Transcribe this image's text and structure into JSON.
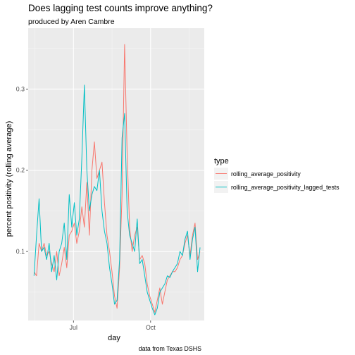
{
  "chart_data": {
    "type": "line",
    "title": "Does lagging test counts improve anything?",
    "subtitle": "produced by Aren Cambre",
    "caption": "data from Texas DSHS",
    "xlabel": "day",
    "ylabel": "percent positivity (rolling average)",
    "x_ticks": [
      "Jul",
      "Oct"
    ],
    "y_ticks": [
      "0.1",
      "0.2",
      "0.3"
    ],
    "ylim": [
      0.015,
      0.375
    ],
    "grid": true,
    "legend": {
      "title": "type",
      "position": "right"
    },
    "series": [
      {
        "name": "rolling_average_positivity",
        "color": "#F8766D",
        "x": [
          "2020-05-15",
          "2020-05-18",
          "2020-05-21",
          "2020-05-24",
          "2020-05-27",
          "2020-05-30",
          "2020-06-02",
          "2020-06-05",
          "2020-06-08",
          "2020-06-11",
          "2020-06-14",
          "2020-06-17",
          "2020-06-20",
          "2020-06-23",
          "2020-06-26",
          "2020-06-29",
          "2020-07-02",
          "2020-07-05",
          "2020-07-08",
          "2020-07-11",
          "2020-07-14",
          "2020-07-17",
          "2020-07-20",
          "2020-07-23",
          "2020-07-26",
          "2020-07-29",
          "2020-08-01",
          "2020-08-04",
          "2020-08-07",
          "2020-08-10",
          "2020-08-13",
          "2020-08-16",
          "2020-08-19",
          "2020-08-22",
          "2020-08-25",
          "2020-08-28",
          "2020-08-31",
          "2020-09-03",
          "2020-09-06",
          "2020-09-09",
          "2020-09-12",
          "2020-09-15",
          "2020-09-18",
          "2020-09-21",
          "2020-09-24",
          "2020-09-27",
          "2020-09-30",
          "2020-10-03",
          "2020-10-06",
          "2020-10-09",
          "2020-10-12",
          "2020-10-15",
          "2020-10-18",
          "2020-10-21",
          "2020-10-24",
          "2020-10-27",
          "2020-10-30",
          "2020-11-02",
          "2020-11-05",
          "2020-11-08",
          "2020-11-11",
          "2020-11-14",
          "2020-11-17",
          "2020-11-20",
          "2020-11-23",
          "2020-11-26",
          "2020-11-29"
        ],
        "values": [
          0.075,
          0.07,
          0.11,
          0.1,
          0.11,
          0.095,
          0.1,
          0.085,
          0.075,
          0.1,
          0.07,
          0.085,
          0.105,
          0.08,
          0.12,
          0.125,
          0.135,
          0.11,
          0.125,
          0.155,
          0.13,
          0.185,
          0.12,
          0.2,
          0.235,
          0.19,
          0.2,
          0.21,
          0.16,
          0.12,
          0.1,
          0.075,
          0.045,
          0.03,
          0.08,
          0.17,
          0.355,
          0.22,
          0.13,
          0.1,
          0.12,
          0.13,
          0.09,
          0.095,
          0.085,
          0.06,
          0.045,
          0.035,
          0.025,
          0.04,
          0.055,
          0.035,
          0.05,
          0.065,
          0.07,
          0.075,
          0.075,
          0.08,
          0.09,
          0.095,
          0.11,
          0.12,
          0.095,
          0.12,
          0.135,
          0.09,
          0.1
        ]
      },
      {
        "name": "rolling_average_positivity_lagged_tests",
        "color": "#00BFC4",
        "x": [
          "2020-05-15",
          "2020-05-18",
          "2020-05-21",
          "2020-05-24",
          "2020-05-27",
          "2020-05-30",
          "2020-06-02",
          "2020-06-05",
          "2020-06-08",
          "2020-06-11",
          "2020-06-14",
          "2020-06-17",
          "2020-06-20",
          "2020-06-23",
          "2020-06-26",
          "2020-06-29",
          "2020-07-02",
          "2020-07-05",
          "2020-07-08",
          "2020-07-11",
          "2020-07-14",
          "2020-07-17",
          "2020-07-20",
          "2020-07-23",
          "2020-07-26",
          "2020-07-29",
          "2020-08-01",
          "2020-08-04",
          "2020-08-07",
          "2020-08-10",
          "2020-08-13",
          "2020-08-16",
          "2020-08-19",
          "2020-08-22",
          "2020-08-25",
          "2020-08-28",
          "2020-08-31",
          "2020-09-03",
          "2020-09-06",
          "2020-09-09",
          "2020-09-12",
          "2020-09-15",
          "2020-09-18",
          "2020-09-21",
          "2020-09-24",
          "2020-09-27",
          "2020-09-30",
          "2020-10-03",
          "2020-10-06",
          "2020-10-09",
          "2020-10-12",
          "2020-10-15",
          "2020-10-18",
          "2020-10-21",
          "2020-10-24",
          "2020-10-27",
          "2020-10-30",
          "2020-11-02",
          "2020-11-05",
          "2020-11-08",
          "2020-11-11",
          "2020-11-14",
          "2020-11-17",
          "2020-11-20",
          "2020-11-23",
          "2020-11-26",
          "2020-11-29"
        ],
        "values": [
          0.07,
          0.12,
          0.165,
          0.1,
          0.105,
          0.09,
          0.11,
          0.075,
          0.095,
          0.065,
          0.1,
          0.11,
          0.135,
          0.09,
          0.17,
          0.13,
          0.16,
          0.12,
          0.14,
          0.215,
          0.305,
          0.2,
          0.15,
          0.17,
          0.18,
          0.175,
          0.2,
          0.15,
          0.125,
          0.11,
          0.08,
          0.06,
          0.035,
          0.04,
          0.09,
          0.24,
          0.27,
          0.15,
          0.12,
          0.11,
          0.1,
          0.14,
          0.085,
          0.09,
          0.07,
          0.05,
          0.04,
          0.03,
          0.022,
          0.03,
          0.05,
          0.055,
          0.06,
          0.07,
          0.068,
          0.075,
          0.08,
          0.085,
          0.1,
          0.095,
          0.115,
          0.125,
          0.09,
          0.115,
          0.13,
          0.075,
          0.105
        ]
      }
    ]
  }
}
